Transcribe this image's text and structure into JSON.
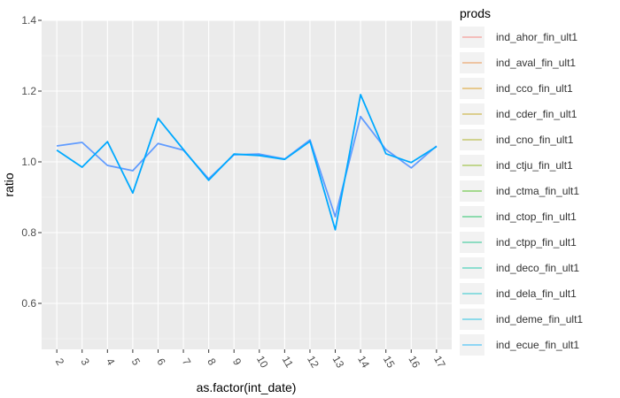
{
  "chart_data": {
    "type": "line",
    "xlabel": "as.factor(int_date)",
    "ylabel": "ratio",
    "categories": [
      "2",
      "3",
      "4",
      "5",
      "6",
      "7",
      "8",
      "9",
      "10",
      "11",
      "12",
      "13",
      "14",
      "15",
      "16",
      "17"
    ],
    "yticks": [
      "0.6",
      "0.8",
      "1.0",
      "1.2",
      "1.4"
    ],
    "ylim": [
      0.47,
      1.4
    ],
    "grid": true,
    "legend_position": "right",
    "legend_title": "prods",
    "legend": [
      {
        "name": "ind_ahor_fin_ult1",
        "color": "#f8766d"
      },
      {
        "name": "ind_aval_fin_ult1",
        "color": "#ea8331"
      },
      {
        "name": "ind_cco_fin_ult1",
        "color": "#d89000"
      },
      {
        "name": "ind_cder_fin_ult1",
        "color": "#c09b00"
      },
      {
        "name": "ind_cno_fin_ult1",
        "color": "#a3a500"
      },
      {
        "name": "ind_ctju_fin_ult1",
        "color": "#7cae00"
      },
      {
        "name": "ind_ctma_fin_ult1",
        "color": "#39b600"
      },
      {
        "name": "ind_ctop_fin_ult1",
        "color": "#00bb4e"
      },
      {
        "name": "ind_ctpp_fin_ult1",
        "color": "#00bf7d"
      },
      {
        "name": "ind_deco_fin_ult1",
        "color": "#00c1a3"
      },
      {
        "name": "ind_dela_fin_ult1",
        "color": "#00bfc4"
      },
      {
        "name": "ind_deme_fin_ult1",
        "color": "#00bae0"
      },
      {
        "name": "ind_ecue_fin_ult1",
        "color": "#00b0f6"
      }
    ],
    "series": [
      {
        "color": "#619cff",
        "values": [
          1.045,
          1.055,
          0.99,
          0.975,
          1.052,
          1.033,
          0.952,
          1.02,
          1.022,
          1.008,
          1.062,
          0.845,
          1.128,
          1.035,
          0.983,
          1.045
        ]
      },
      {
        "color": "#00a9ff",
        "values": [
          1.033,
          0.985,
          1.057,
          0.912,
          1.123,
          1.035,
          0.948,
          1.022,
          1.018,
          1.007,
          1.058,
          0.808,
          1.19,
          1.023,
          0.998,
          1.043
        ]
      }
    ]
  }
}
